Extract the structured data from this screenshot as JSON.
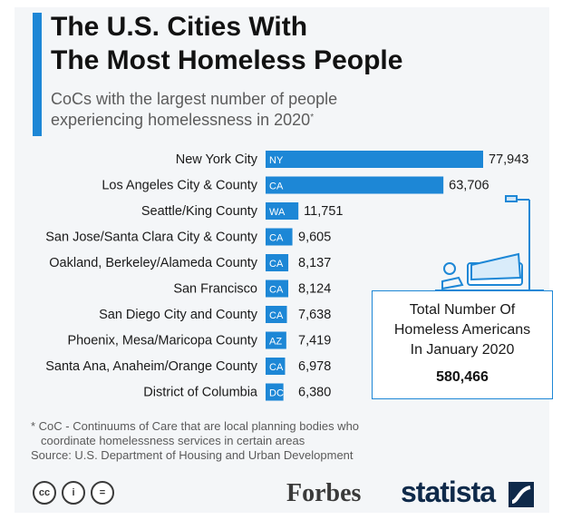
{
  "header": {
    "title_line1": "The U.S. Cities With",
    "title_line2": "The Most Homeless People",
    "subtitle_line1": "CoCs with the largest number of people",
    "subtitle_line2": "experiencing homelessness in 2020",
    "subtitle_mark": "*"
  },
  "chart_data": {
    "type": "bar",
    "orientation": "horizontal",
    "title": "The U.S. Cities With The Most Homeless People",
    "subtitle": "CoCs with the largest number of people experiencing homelessness in 2020*",
    "categories": [
      "New York City",
      "Los Angeles City & County",
      "Seattle/King County",
      "San Jose/Santa Clara City & County",
      "Oakland, Berkeley/Alameda County",
      "San Francisco",
      "San Diego City and County",
      "Phoenix, Mesa/Maricopa County",
      "Santa Ana, Anaheim/Orange County",
      "District of Columbia"
    ],
    "state_codes": [
      "NY",
      "CA",
      "WA",
      "CA",
      "CA",
      "CA",
      "CA",
      "AZ",
      "CA",
      "DC"
    ],
    "values": [
      77943,
      63706,
      11751,
      9605,
      8137,
      8124,
      7638,
      7419,
      6978,
      6380
    ],
    "value_labels": [
      "77,943",
      "63,706",
      "11,751",
      "9,605",
      "8,137",
      "8,124",
      "7,638",
      "7,419",
      "6,978",
      "6,380"
    ],
    "xlim": [
      0,
      77943
    ],
    "grid": false,
    "bar_color": "#1d87d6"
  },
  "total": {
    "line1": "Total Number Of",
    "line2": "Homeless Americans",
    "line3": "In January 2020",
    "value": "580,466"
  },
  "footnote": {
    "line1": "* CoC - Continuums of Care that are local planning bodies who",
    "line2": "coordinate homelessness services in certain areas",
    "source": "Source: U.S. Department of Housing and Urban Development"
  },
  "branding": {
    "license_icons": [
      "creative-commons-icon",
      "attribution-icon",
      "no-derivatives-icon"
    ],
    "license_glyphs": [
      "cc",
      "i",
      "="
    ],
    "forbes": "Forbes",
    "statista": "statista"
  },
  "colors": {
    "accent": "#1d87d6",
    "dark": "#0f2a4a",
    "panel": "#f4f6f8"
  }
}
